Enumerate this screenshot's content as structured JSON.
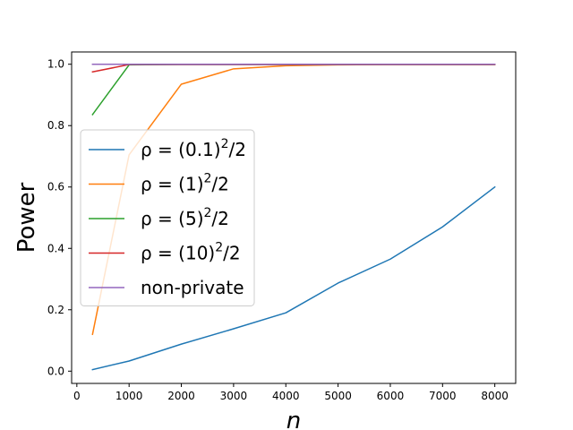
{
  "chart_data": {
    "type": "line",
    "xlabel": "n",
    "ylabel": "Power",
    "xlim": [
      -100,
      8400
    ],
    "ylim": [
      -0.04,
      1.04
    ],
    "xticks": [
      0,
      1000,
      2000,
      3000,
      4000,
      5000,
      6000,
      7000,
      8000
    ],
    "yticks": [
      0.0,
      0.2,
      0.4,
      0.6,
      0.8,
      1.0
    ],
    "xtick_labels": [
      "0",
      "1000",
      "2000",
      "3000",
      "4000",
      "5000",
      "6000",
      "7000",
      "8000"
    ],
    "ytick_labels": [
      "0.0",
      "0.2",
      "0.4",
      "0.6",
      "0.8",
      "1.0"
    ],
    "grid": false,
    "legend_position": "center-left",
    "series": [
      {
        "name": "ρ=(0.1)²/2",
        "label_base": "ρ = (0.1)",
        "label_exp": "2",
        "label_tail": "/2",
        "color": "#1f77b4",
        "x": [
          300,
          1000,
          2000,
          3000,
          4000,
          5000,
          6000,
          7000,
          8000
        ],
        "y": [
          0.005,
          0.033,
          0.088,
          0.138,
          0.19,
          0.287,
          0.365,
          0.47,
          0.6
        ]
      },
      {
        "name": "ρ=(1)²/2",
        "label_base": "ρ = (1)",
        "label_exp": "2",
        "label_tail": "/2",
        "color": "#ff7f0e",
        "x": [
          300,
          1000,
          2000,
          3000,
          4000,
          5000,
          6000,
          7000,
          8000
        ],
        "y": [
          0.12,
          0.705,
          0.935,
          0.985,
          0.995,
          0.998,
          0.999,
          0.999,
          0.999
        ]
      },
      {
        "name": "ρ=(5)²/2",
        "label_base": "ρ = (5)",
        "label_exp": "2",
        "label_tail": "/2",
        "color": "#2ca02c",
        "x": [
          300,
          1000,
          2000,
          3000,
          4000,
          5000,
          6000,
          7000,
          8000
        ],
        "y": [
          0.836,
          0.998,
          0.999,
          0.999,
          0.999,
          0.999,
          0.999,
          0.999,
          0.999
        ]
      },
      {
        "name": "ρ=(10)²/2",
        "label_base": "ρ = (10)",
        "label_exp": "2",
        "label_tail": "/2",
        "color": "#d62728",
        "x": [
          300,
          1000,
          2000,
          3000,
          4000,
          5000,
          6000,
          7000,
          8000
        ],
        "y": [
          0.975,
          0.999,
          0.999,
          0.999,
          0.999,
          0.999,
          0.999,
          0.999,
          0.999
        ]
      },
      {
        "name": "non-private",
        "label_base": "non-private",
        "label_exp": "",
        "label_tail": "",
        "color": "#9467bd",
        "x": [
          300,
          1000,
          2000,
          3000,
          4000,
          5000,
          6000,
          7000,
          8000
        ],
        "y": [
          1.0,
          1.0,
          1.0,
          1.0,
          1.0,
          1.0,
          1.0,
          1.0,
          1.0
        ]
      }
    ]
  }
}
